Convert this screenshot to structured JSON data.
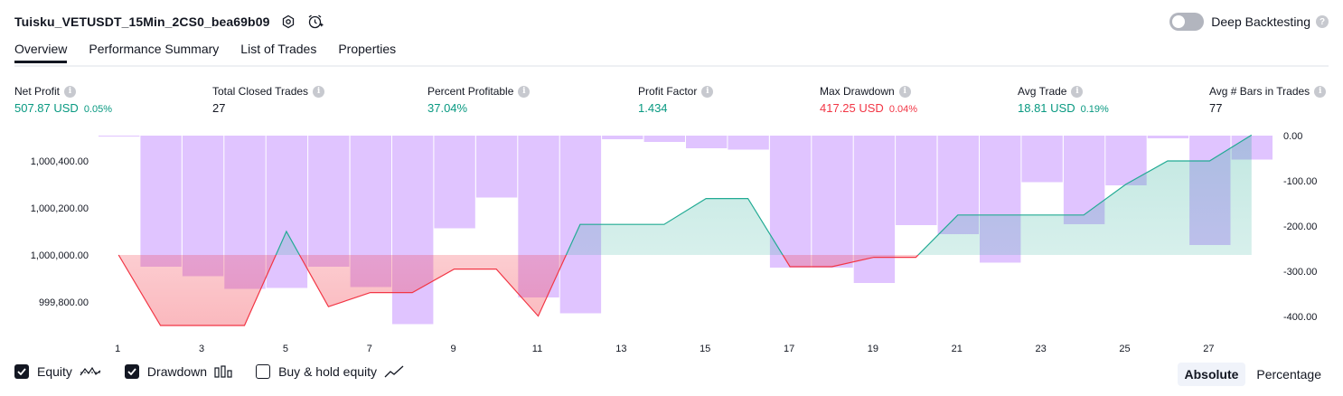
{
  "header": {
    "strategy_name": "Tuisku_VETUSDT_15Min_2CS0_bea69b09",
    "settings_icon": "gear-icon",
    "alert_icon": "add-alert-clock-icon",
    "deep_backtesting_label": "Deep Backtesting",
    "deep_backtesting_enabled": false
  },
  "tabs": [
    {
      "label": "Overview",
      "active": true
    },
    {
      "label": "Performance Summary",
      "active": false
    },
    {
      "label": "List of Trades",
      "active": false
    },
    {
      "label": "Properties",
      "active": false
    }
  ],
  "metrics": [
    {
      "label": "Net Profit",
      "value": "507.87 USD",
      "pct": "0.05%",
      "color": "#089981"
    },
    {
      "label": "Total Closed Trades",
      "value": "27",
      "pct": "",
      "color": "#131722"
    },
    {
      "label": "Percent Profitable",
      "value": "37.04%",
      "pct": "",
      "color": "#089981"
    },
    {
      "label": "Profit Factor",
      "value": "1.434",
      "pct": "",
      "color": "#089981"
    },
    {
      "label": "Max Drawdown",
      "value": "417.25 USD",
      "pct": "0.04%",
      "color": "#f23645"
    },
    {
      "label": "Avg Trade",
      "value": "18.81 USD",
      "pct": "0.19%",
      "color": "#089981"
    },
    {
      "label": "Avg # Bars in Trades",
      "value": "77",
      "pct": "",
      "color": "#131722"
    }
  ],
  "chart_data": {
    "type": "line",
    "x": [
      1,
      2,
      3,
      4,
      5,
      6,
      7,
      8,
      9,
      10,
      11,
      12,
      13,
      14,
      15,
      16,
      17,
      18,
      19,
      20,
      21,
      22,
      23,
      24,
      25,
      26,
      27,
      28
    ],
    "x_tick_labels": [
      "1",
      "3",
      "5",
      "7",
      "9",
      "11",
      "13",
      "15",
      "17",
      "19",
      "21",
      "23",
      "25",
      "27"
    ],
    "equity_baseline": 1000000,
    "series": [
      {
        "name": "Equity",
        "axis": "left",
        "values": [
          1000000,
          999700,
          999700,
          999700,
          1000100,
          999780,
          999840,
          999840,
          999940,
          999940,
          999740,
          1000130,
          1000130,
          1000130,
          1000240,
          1000240,
          999950,
          999950,
          999990,
          999990,
          1000170,
          1000170,
          1000170,
          1000170,
          1000300,
          1000400,
          1000400,
          1000510
        ]
      },
      {
        "name": "Drawdown",
        "axis": "right",
        "values": [
          -1,
          -290,
          -311,
          -339,
          -337,
          -290,
          -335,
          -417,
          -205,
          -137,
          -358,
          -393,
          -8,
          -14,
          -28,
          -31,
          -292,
          -292,
          -326,
          -198,
          -218,
          -281,
          -103,
          -196,
          -110,
          -6,
          -242,
          -53
        ]
      }
    ],
    "left_axis": {
      "ticks": [
        "1,000,400.00",
        "1,000,200.00",
        "1,000,000.00",
        "999,800.00"
      ],
      "tick_values": [
        1000400,
        1000200,
        1000000,
        999800
      ]
    },
    "right_axis": {
      "ticks": [
        "0.00",
        "-100.00",
        "-200.00",
        "-300.00",
        "-400.00"
      ],
      "tick_values": [
        0,
        -100,
        -200,
        -300,
        -400
      ]
    },
    "colors": {
      "equity_up": "#22ab94",
      "equity_down": "#f23645",
      "drawdown": "#dcbcff"
    }
  },
  "legend": [
    {
      "label": "Equity",
      "checked": true,
      "icon": "equity-line-icon"
    },
    {
      "label": "Drawdown",
      "checked": true,
      "icon": "drawdown-bars-icon"
    },
    {
      "label": "Buy & hold equity",
      "checked": false,
      "icon": "buy-hold-line-icon"
    }
  ],
  "view_mode": {
    "absolute_label": "Absolute",
    "percentage_label": "Percentage",
    "selected": "Absolute"
  }
}
